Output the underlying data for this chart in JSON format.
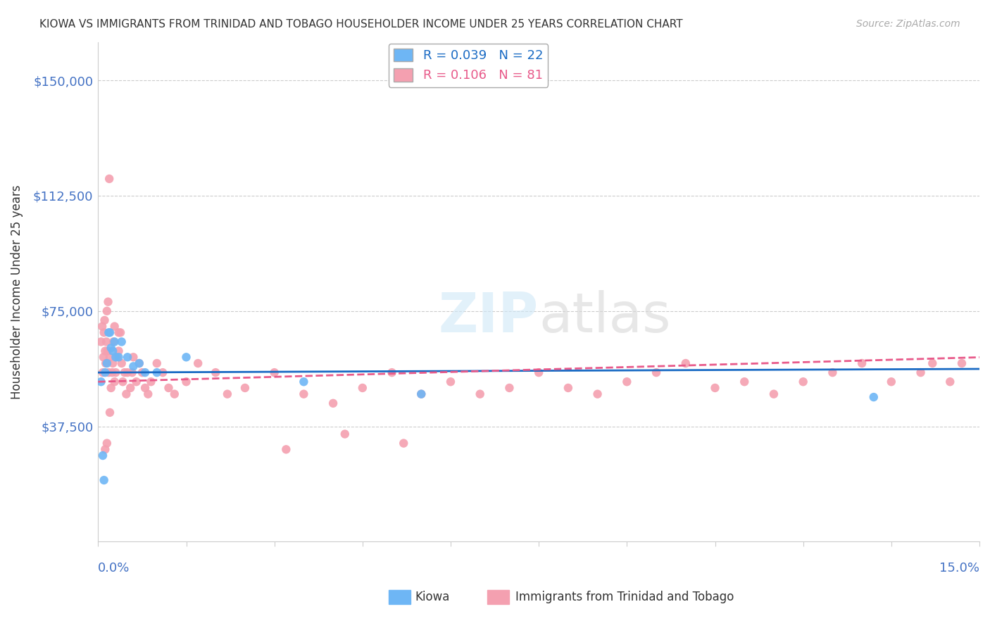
{
  "title": "KIOWA VS IMMIGRANTS FROM TRINIDAD AND TOBAGO HOUSEHOLDER INCOME UNDER 25 YEARS CORRELATION CHART",
  "source": "Source: ZipAtlas.com",
  "ylabel": "Householder Income Under 25 years",
  "xlim": [
    0.0,
    15.0
  ],
  "ylim": [
    0,
    162500
  ],
  "yticks": [
    0,
    37500,
    75000,
    112500,
    150000
  ],
  "ytick_labels": [
    "",
    "$37,500",
    "$75,000",
    "$112,500",
    "$150,000"
  ],
  "watermark_part1": "ZIP",
  "watermark_part2": "atlas",
  "kiowa_R": 0.039,
  "kiowa_N": 22,
  "tt_R": 0.106,
  "tt_N": 81,
  "kiowa_color": "#6eb6f5",
  "tt_color": "#f4a0b0",
  "kiowa_line_color": "#1a6bc4",
  "tt_line_color": "#e85a8a",
  "background_color": "#ffffff",
  "grid_color": "#cccccc",
  "title_color": "#333333",
  "tick_label_color": "#4472c4",
  "kiowa_x": [
    0.05,
    0.08,
    0.1,
    0.12,
    0.15,
    0.18,
    0.2,
    0.22,
    0.25,
    0.28,
    0.3,
    0.35,
    0.4,
    0.5,
    0.6,
    0.7,
    0.8,
    1.0,
    1.5,
    3.5,
    5.5,
    13.2
  ],
  "kiowa_y": [
    52000,
    28000,
    20000,
    55000,
    58000,
    68000,
    68000,
    63000,
    62000,
    65000,
    60000,
    60000,
    65000,
    60000,
    57000,
    58000,
    55000,
    55000,
    60000,
    52000,
    48000,
    47000
  ],
  "tt_x": [
    0.05,
    0.07,
    0.08,
    0.09,
    0.1,
    0.11,
    0.12,
    0.13,
    0.14,
    0.15,
    0.16,
    0.17,
    0.18,
    0.19,
    0.2,
    0.22,
    0.24,
    0.25,
    0.26,
    0.28,
    0.3,
    0.32,
    0.35,
    0.38,
    0.4,
    0.42,
    0.45,
    0.48,
    0.5,
    0.55,
    0.58,
    0.6,
    0.65,
    0.7,
    0.75,
    0.8,
    0.85,
    0.9,
    1.0,
    1.1,
    1.2,
    1.3,
    1.5,
    1.7,
    2.0,
    2.5,
    3.0,
    3.2,
    3.5,
    4.0,
    4.2,
    4.5,
    5.0,
    5.2,
    5.5,
    6.0,
    6.5,
    7.0,
    7.5,
    8.0,
    8.5,
    9.0,
    9.5,
    10.0,
    10.5,
    11.0,
    11.5,
    12.0,
    12.5,
    13.0,
    13.5,
    14.0,
    14.2,
    14.5,
    14.7,
    2.2,
    0.35,
    0.28,
    0.2,
    0.15,
    0.12
  ],
  "tt_y": [
    65000,
    70000,
    55000,
    60000,
    68000,
    72000,
    62000,
    58000,
    65000,
    75000,
    62000,
    78000,
    55000,
    118000,
    60000,
    50000,
    55000,
    58000,
    65000,
    70000,
    55000,
    60000,
    62000,
    68000,
    58000,
    52000,
    55000,
    48000,
    55000,
    50000,
    55000,
    60000,
    52000,
    58000,
    55000,
    50000,
    48000,
    52000,
    58000,
    55000,
    50000,
    48000,
    52000,
    58000,
    55000,
    50000,
    55000,
    30000,
    48000,
    45000,
    35000,
    50000,
    55000,
    32000,
    48000,
    52000,
    48000,
    50000,
    55000,
    50000,
    48000,
    52000,
    55000,
    58000,
    50000,
    52000,
    48000,
    52000,
    55000,
    58000,
    52000,
    55000,
    58000,
    52000,
    58000,
    48000,
    68000,
    52000,
    42000,
    32000,
    30000
  ]
}
